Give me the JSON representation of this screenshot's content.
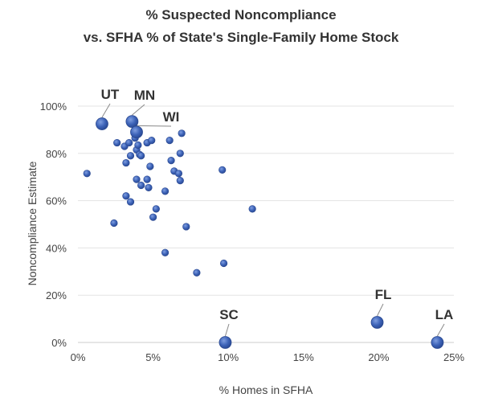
{
  "chart_data": {
    "type": "scatter",
    "title": "% Suspected Noncompliance",
    "subtitle": "vs. SFHA % of State's Single-Family Home Stock",
    "xlabel": "% Homes in SFHA",
    "ylabel": "Noncompliance Estimate",
    "xlim": [
      0,
      25
    ],
    "ylim": [
      0,
      100
    ],
    "x_ticks": [
      0,
      5,
      10,
      15,
      20,
      25
    ],
    "y_ticks": [
      0,
      20,
      40,
      60,
      80,
      100
    ],
    "x_tick_labels": [
      "0%",
      "5%",
      "10%",
      "15%",
      "20%",
      "25%"
    ],
    "y_tick_labels": [
      "0%",
      "20%",
      "40%",
      "60%",
      "80%",
      "100%"
    ],
    "grid": "horizontal",
    "marker_color": "#3d63b8",
    "points": [
      {
        "x": 0.6,
        "y": 71.5
      },
      {
        "x": 2.4,
        "y": 50.5
      },
      {
        "x": 2.6,
        "y": 84.5
      },
      {
        "x": 3.1,
        "y": 83
      },
      {
        "x": 3.2,
        "y": 76
      },
      {
        "x": 3.2,
        "y": 62
      },
      {
        "x": 3.4,
        "y": 84.5
      },
      {
        "x": 3.5,
        "y": 79
      },
      {
        "x": 3.5,
        "y": 59.5
      },
      {
        "x": 3.8,
        "y": 86.5
      },
      {
        "x": 3.9,
        "y": 81.5
      },
      {
        "x": 3.9,
        "y": 69
      },
      {
        "x": 4.0,
        "y": 83.5
      },
      {
        "x": 4.1,
        "y": 79.5
      },
      {
        "x": 4.2,
        "y": 79
      },
      {
        "x": 4.2,
        "y": 66.5
      },
      {
        "x": 4.6,
        "y": 84.5
      },
      {
        "x": 4.6,
        "y": 69
      },
      {
        "x": 4.7,
        "y": 65.5
      },
      {
        "x": 4.8,
        "y": 74.5
      },
      {
        "x": 4.9,
        "y": 85.5
      },
      {
        "x": 5.0,
        "y": 53
      },
      {
        "x": 5.2,
        "y": 56.5
      },
      {
        "x": 5.8,
        "y": 38
      },
      {
        "x": 5.8,
        "y": 64
      },
      {
        "x": 6.1,
        "y": 85.5
      },
      {
        "x": 6.2,
        "y": 77
      },
      {
        "x": 6.4,
        "y": 72.5
      },
      {
        "x": 6.7,
        "y": 71.5
      },
      {
        "x": 6.8,
        "y": 68.5
      },
      {
        "x": 6.8,
        "y": 80
      },
      {
        "x": 6.9,
        "y": 88.5
      },
      {
        "x": 7.2,
        "y": 49
      },
      {
        "x": 7.9,
        "y": 29.5
      },
      {
        "x": 9.6,
        "y": 73
      },
      {
        "x": 9.7,
        "y": 33.5
      },
      {
        "x": 11.6,
        "y": 56.5
      }
    ],
    "labeled_points": [
      {
        "label": "UT",
        "x": 1.6,
        "y": 92.5
      },
      {
        "label": "MN",
        "x": 3.6,
        "y": 93.5
      },
      {
        "label": "WI",
        "x": 3.9,
        "y": 89
      },
      {
        "label": "SC",
        "x": 9.8,
        "y": 0
      },
      {
        "label": "FL",
        "x": 19.9,
        "y": 8.5
      },
      {
        "label": "LA",
        "x": 23.9,
        "y": 0
      }
    ]
  }
}
